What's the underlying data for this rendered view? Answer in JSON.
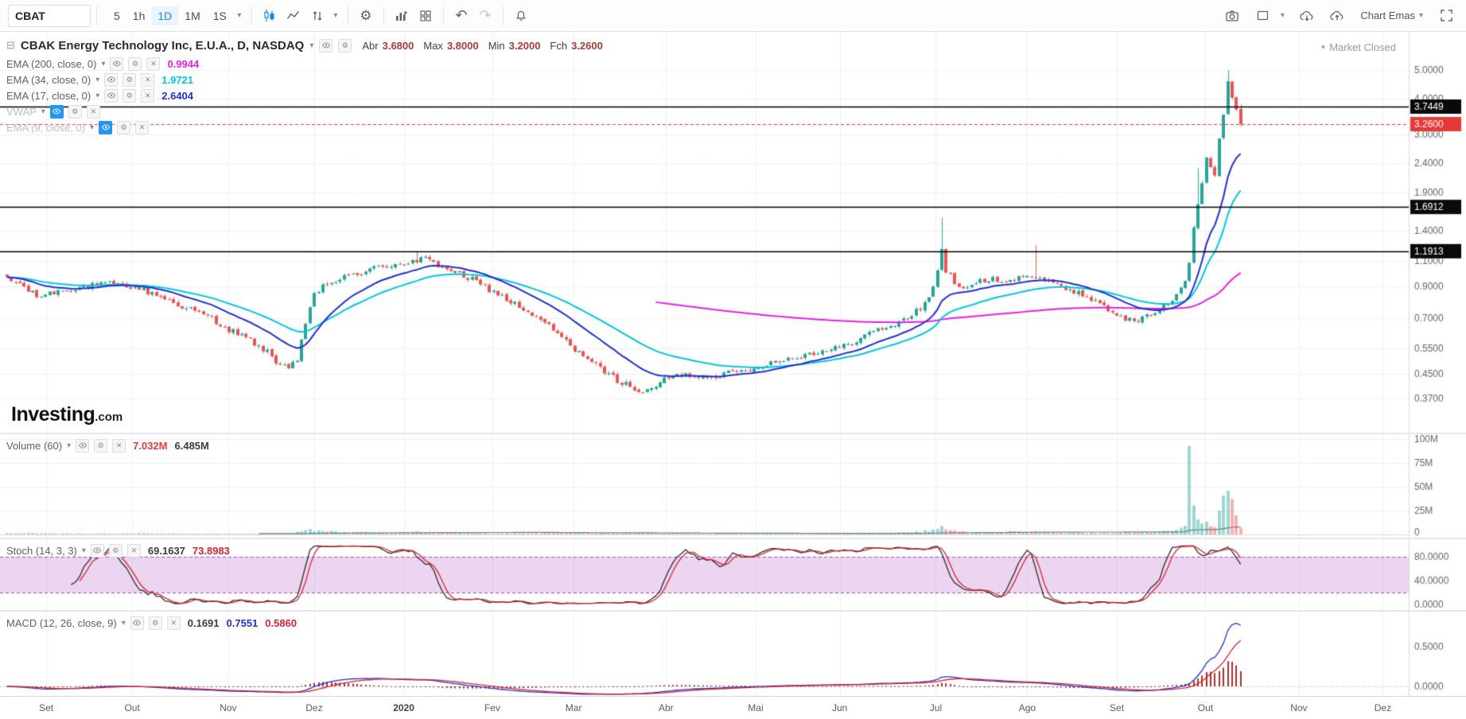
{
  "colors": {
    "up": "#26a69a",
    "down": "#ef5350",
    "vol_up": "rgba(38,166,154,0.45)",
    "vol_down": "rgba(239,83,80,0.45)",
    "ema200": "#e91fe9",
    "ema34": "#00c8dd",
    "ema17": "#2130cf",
    "stoch_k": "#2b2b2b",
    "stoch_d": "#d9232e",
    "macd_line": "#2130cf",
    "macd_signal": "#d9232e",
    "macd_hist": "#a83232",
    "vol_ma": "#6b7f8d",
    "last_price": "#e53935",
    "hline": "#000000",
    "grid": "#efefef",
    "axis_text": "#666666",
    "band_fill": "rgba(186,104,200,0.28)",
    "band_edge": "#ab47bc",
    "toolbar_active": "#1e88e5"
  },
  "toolbar": {
    "symbol": "CBAT",
    "intervals": [
      "5",
      "1h",
      "1D",
      "1M",
      "1S"
    ],
    "active_interval": "1D",
    "template_selector": "Chart Emas"
  },
  "header": {
    "title": "CBAK Energy Technology Inc, E.U.A., D, NASDAQ",
    "ohlc": [
      [
        "Abr",
        "3.6800"
      ],
      [
        "Max",
        "3.8000"
      ],
      [
        "Min",
        "3.2000"
      ],
      [
        "Fch",
        "3.2600"
      ]
    ],
    "market_status": "Market Closed"
  },
  "indicators": [
    {
      "name": "EMA (200, close, 0)",
      "value": "0.9944",
      "color": "#e91fe9",
      "hidden": false
    },
    {
      "name": "EMA (34, close, 0)",
      "value": "1.9721",
      "color": "#00c8dd",
      "hidden": false
    },
    {
      "name": "EMA (17, close, 0)",
      "value": "2.6404",
      "color": "#2130cf",
      "hidden": false
    },
    {
      "name": "VWAP",
      "value": "",
      "color": "",
      "hidden": true
    },
    {
      "name": "EMA (9, close, 0)",
      "value": "",
      "color": "",
      "hidden": true
    }
  ],
  "panels": {
    "volume": {
      "name": "Volume (60)",
      "values": [
        {
          "text": "7.032M",
          "color": "#e23b3b"
        },
        {
          "text": "6.485M",
          "color": "#3c3c3c"
        }
      ],
      "axis": [
        {
          "t": "100M",
          "v": 100
        },
        {
          "t": "75M",
          "v": 75
        },
        {
          "t": "50M",
          "v": 50
        },
        {
          "t": "25M",
          "v": 25
        },
        {
          "t": "0",
          "v": 0
        }
      ]
    },
    "stoch": {
      "name": "Stoch (14, 3, 3)",
      "values": [
        {
          "text": "69.1637",
          "color": "#3c3c3c"
        },
        {
          "text": "73.8983",
          "color": "#d9232e"
        }
      ],
      "axis": [
        {
          "t": "80.0000",
          "v": 80
        },
        {
          "t": "40.0000",
          "v": 40
        },
        {
          "t": "0.0000",
          "v": 0
        }
      ]
    },
    "macd": {
      "name": "MACD (12, 26, close, 9)",
      "values": [
        {
          "text": "0.1691",
          "color": "#3c3c3c"
        },
        {
          "text": "0.7551",
          "color": "#2130cf"
        },
        {
          "text": "0.5860",
          "color": "#d9232e"
        }
      ],
      "axis": [
        {
          "t": "0.5000",
          "v": 0.5
        },
        {
          "t": "0.0000",
          "v": 0
        }
      ]
    }
  },
  "price_axis": {
    "labels": [
      {
        "t": "5.0000",
        "p": 5.0
      },
      {
        "t": "4.0000",
        "p": 4.0
      },
      {
        "t": "3.0000",
        "p": 3.0
      },
      {
        "t": "2.4000",
        "p": 2.4
      },
      {
        "t": "1.9000",
        "p": 1.9
      },
      {
        "t": "1.4000",
        "p": 1.4
      },
      {
        "t": "1.1000",
        "p": 1.1
      },
      {
        "t": "0.9000",
        "p": 0.9
      },
      {
        "t": "0.7000",
        "p": 0.7
      },
      {
        "t": "0.5500",
        "p": 0.55
      },
      {
        "t": "0.4500",
        "p": 0.45
      },
      {
        "t": "0.3700",
        "p": 0.37
      }
    ],
    "badges": [
      {
        "t": "3.7449",
        "p": 3.7449,
        "bg": "#0a0a0a"
      },
      {
        "t": "3.2600",
        "p": 3.26,
        "bg": "#e53935"
      },
      {
        "t": "1.6912",
        "p": 1.6912,
        "bg": "#0a0a0a"
      },
      {
        "t": "1.1913",
        "p": 1.1913,
        "bg": "#0a0a0a"
      }
    ]
  },
  "time_axis": {
    "months": [
      {
        "t": "Set",
        "f": 0.0328
      },
      {
        "t": "Out",
        "f": 0.0938
      },
      {
        "t": "Nov",
        "f": 0.162
      },
      {
        "t": "Dez",
        "f": 0.223
      },
      {
        "t": "2020",
        "f": 0.2866,
        "bold": true
      },
      {
        "t": "Fev",
        "f": 0.3495
      },
      {
        "t": "Mar",
        "f": 0.4072
      },
      {
        "t": "Abr",
        "f": 0.4728
      },
      {
        "t": "Mai",
        "f": 0.5364
      },
      {
        "t": "Jun",
        "f": 0.5961
      },
      {
        "t": "Jul",
        "f": 0.6643
      },
      {
        "t": "Ago",
        "f": 0.7292
      },
      {
        "t": "Set",
        "f": 0.7928
      },
      {
        "t": "Out",
        "f": 0.8557
      },
      {
        "t": "Nov",
        "f": 0.922
      },
      {
        "t": "Dez",
        "f": 0.9816
      }
    ]
  },
  "watermark": {
    "brand": "Investing",
    "tld": ".com"
  },
  "chart_data": {
    "type": "candlestick",
    "symbol": "CBAT",
    "exchange": "NASDAQ",
    "interval": "D",
    "log_scale": true,
    "last_price": 3.26,
    "last_ohlc": {
      "open": 3.68,
      "high": 3.8,
      "low": 3.2,
      "close": 3.26
    },
    "horizontal_lines": [
      3.7449,
      1.6912,
      1.1913
    ],
    "ema_final_values": {
      "ema200": 0.9944,
      "ema34": 1.9721,
      "ema17": 2.6404
    },
    "stoch_final_values": {
      "k": 69.1637,
      "d": 73.8983
    },
    "macd_final_values": {
      "hist": 0.1691,
      "macd": 0.7551,
      "signal": 0.586
    },
    "volume_final_values_M": {
      "bar": 7.032,
      "ma60": 6.485
    },
    "n_days": 289,
    "x0_frac": 0.005,
    "day_step_frac": 0.00303,
    "close_anchors": [
      [
        0,
        0.95
      ],
      [
        3,
        0.92
      ],
      [
        7,
        0.83
      ],
      [
        12,
        0.87
      ],
      [
        18,
        0.9
      ],
      [
        24,
        0.92
      ],
      [
        30,
        0.9
      ],
      [
        36,
        0.83
      ],
      [
        42,
        0.76
      ],
      [
        48,
        0.7
      ],
      [
        52,
        0.64
      ],
      [
        56,
        0.6
      ],
      [
        60,
        0.55
      ],
      [
        63,
        0.5
      ],
      [
        66,
        0.47
      ],
      [
        68,
        0.5
      ],
      [
        70,
        0.68
      ],
      [
        72,
        0.85
      ],
      [
        75,
        0.92
      ],
      [
        80,
        0.98
      ],
      [
        85,
        1.03
      ],
      [
        90,
        1.07
      ],
      [
        95,
        1.1
      ],
      [
        98,
        1.12
      ],
      [
        101,
        1.07
      ],
      [
        105,
        1.01
      ],
      [
        109,
        0.95
      ],
      [
        113,
        0.88
      ],
      [
        118,
        0.8
      ],
      [
        123,
        0.72
      ],
      [
        127,
        0.66
      ],
      [
        131,
        0.58
      ],
      [
        135,
        0.52
      ],
      [
        139,
        0.47
      ],
      [
        143,
        0.43
      ],
      [
        147,
        0.4
      ],
      [
        150,
        0.39
      ],
      [
        154,
        0.43
      ],
      [
        158,
        0.45
      ],
      [
        163,
        0.44
      ],
      [
        168,
        0.45
      ],
      [
        172,
        0.46
      ],
      [
        176,
        0.48
      ],
      [
        181,
        0.5
      ],
      [
        186,
        0.52
      ],
      [
        191,
        0.54
      ],
      [
        196,
        0.56
      ],
      [
        200,
        0.6
      ],
      [
        204,
        0.64
      ],
      [
        208,
        0.67
      ],
      [
        212,
        0.72
      ],
      [
        215,
        0.78
      ],
      [
        217,
        0.88
      ],
      [
        219,
        1.2
      ],
      [
        220,
        1.02
      ],
      [
        222,
        0.94
      ],
      [
        224,
        0.89
      ],
      [
        227,
        0.92
      ],
      [
        230,
        0.96
      ],
      [
        233,
        0.94
      ],
      [
        236,
        0.96
      ],
      [
        239,
        0.97
      ],
      [
        241,
        0.98
      ],
      [
        244,
        0.93
      ],
      [
        247,
        0.9
      ],
      [
        250,
        0.87
      ],
      [
        253,
        0.82
      ],
      [
        256,
        0.78
      ],
      [
        259,
        0.74
      ],
      [
        262,
        0.7
      ],
      [
        264,
        0.68
      ],
      [
        267,
        0.71
      ],
      [
        270,
        0.75
      ],
      [
        272,
        0.79
      ],
      [
        274,
        0.85
      ],
      [
        276,
        0.95
      ],
      [
        277,
        1.1
      ],
      [
        278,
        1.45
      ],
      [
        279,
        1.75
      ],
      [
        280,
        2.05
      ],
      [
        281,
        2.5
      ],
      [
        282,
        2.3
      ],
      [
        283,
        2.15
      ],
      [
        284,
        2.9
      ],
      [
        285,
        3.5
      ],
      [
        286,
        4.6
      ],
      [
        287,
        4.05
      ],
      [
        288,
        3.7
      ],
      [
        289,
        3.26
      ]
    ],
    "wick_overrides": [
      [
        96,
        1.19,
        null
      ],
      [
        219,
        1.55,
        null
      ],
      [
        241,
        1.25,
        null
      ],
      [
        279,
        2.3,
        null
      ],
      [
        286,
        5.0,
        null
      ],
      [
        289,
        3.8,
        3.2
      ]
    ],
    "volume_anchors_M": [
      [
        0,
        1.5
      ],
      [
        10,
        1.0
      ],
      [
        20,
        0.8
      ],
      [
        30,
        1.2
      ],
      [
        40,
        0.9
      ],
      [
        50,
        0.7
      ],
      [
        60,
        0.8
      ],
      [
        66,
        1.0
      ],
      [
        68,
        2.5
      ],
      [
        70,
        5.5
      ],
      [
        72,
        4.0
      ],
      [
        76,
        3.0
      ],
      [
        82,
        2.2
      ],
      [
        90,
        1.8
      ],
      [
        96,
        2.5
      ],
      [
        105,
        1.5
      ],
      [
        115,
        1.2
      ],
      [
        125,
        1.5
      ],
      [
        133,
        2.0
      ],
      [
        141,
        1.4
      ],
      [
        150,
        1.8
      ],
      [
        160,
        0.9
      ],
      [
        170,
        0.8
      ],
      [
        180,
        0.9
      ],
      [
        190,
        1.0
      ],
      [
        198,
        1.4
      ],
      [
        205,
        1.6
      ],
      [
        212,
        2.2
      ],
      [
        217,
        4.5
      ],
      [
        219,
        8.0
      ],
      [
        221,
        4.0
      ],
      [
        226,
        2.0
      ],
      [
        233,
        2.5
      ],
      [
        239,
        3.0
      ],
      [
        245,
        1.8
      ],
      [
        252,
        1.4
      ],
      [
        258,
        1.6
      ],
      [
        264,
        2.2
      ],
      [
        268,
        1.8
      ],
      [
        272,
        3.5
      ],
      [
        274,
        5.0
      ],
      [
        276,
        9.0
      ],
      [
        277,
        95.0
      ],
      [
        278,
        30.0
      ],
      [
        279,
        16.0
      ],
      [
        280,
        12.0
      ],
      [
        281,
        14.0
      ],
      [
        282,
        9.0
      ],
      [
        283,
        8.0
      ],
      [
        284,
        25.0
      ],
      [
        285,
        40.0
      ],
      [
        286,
        45.0
      ],
      [
        287,
        38.0
      ],
      [
        288,
        20.0
      ],
      [
        289,
        7.0
      ]
    ],
    "ema_draw_from": {
      "200": 152,
      "34": 0,
      "17": 0
    },
    "ema_periods": [
      200,
      34,
      17
    ],
    "stoch_params": [
      14,
      3,
      3
    ],
    "macd_params": [
      12,
      26,
      9
    ],
    "volume_ma_period": 60
  }
}
